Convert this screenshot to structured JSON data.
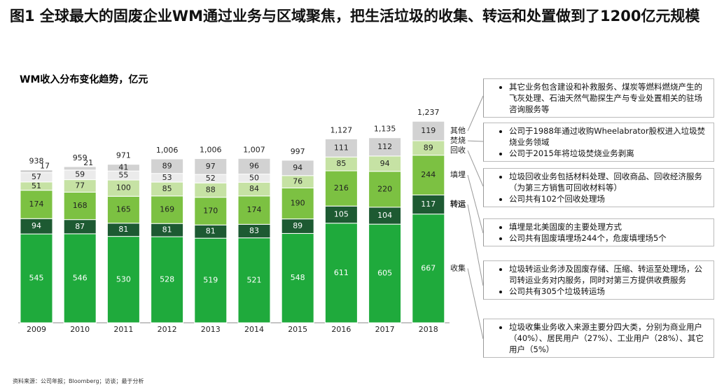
{
  "title": "图1 全球最大的固废企业WM通过业务与区域聚焦，把生活垃圾的收集、转运和处置做到了1200亿元规模",
  "chart_data": {
    "type": "stacked-bar",
    "title": "WM收入分布变化趋势，亿元",
    "categories": [
      "2009",
      "2010",
      "2011",
      "2012",
      "2013",
      "2014",
      "2015",
      "2016",
      "2017",
      "2018"
    ],
    "series": [
      {
        "name": "收集",
        "color": "#1faa3c",
        "values": [
          545,
          546,
          530,
          528,
          519,
          521,
          548,
          611,
          605,
          667
        ]
      },
      {
        "name": "转运",
        "color": "#1d5a32",
        "values": [
          94,
          87,
          81,
          81,
          81,
          83,
          89,
          105,
          104,
          117
        ]
      },
      {
        "name": "填埋",
        "color": "#7cc142",
        "values": [
          174,
          168,
          165,
          169,
          170,
          174,
          190,
          216,
          220,
          244
        ]
      },
      {
        "name": "回收",
        "color": "#c6e2a4",
        "values": [
          51,
          77,
          100,
          85,
          88,
          84,
          76,
          85,
          94,
          89
        ]
      },
      {
        "name": "焚烧",
        "color": "#ebebeb",
        "values": [
          57,
          59,
          55,
          53,
          52,
          50,
          0,
          0,
          0,
          0
        ]
      },
      {
        "name": "其他",
        "color": "#d2d2d2",
        "values": [
          17,
          21,
          41,
          89,
          97,
          96,
          94,
          111,
          112,
          119
        ]
      }
    ],
    "totals": [
      {
        "value": 938,
        "label": "938"
      },
      {
        "value": 959,
        "label": "959"
      },
      {
        "value": 971,
        "label": "971"
      },
      {
        "value": 1006,
        "label": "1,006"
      },
      {
        "value": 1006,
        "label": "1,006"
      },
      {
        "value": 1007,
        "label": "1,007"
      },
      {
        "value": 997,
        "label": "997"
      },
      {
        "value": 1127,
        "label": "1,127"
      },
      {
        "value": 1135,
        "label": "1,135"
      },
      {
        "value": 1237,
        "label": "1,237"
      }
    ]
  },
  "notes": [
    [
      "其它业务包含建设和补救服务、煤炭等燃料燃烧产生的飞灰处理、石油天然气勘探生产与专业处置相关的驻场咨询服务等"
    ],
    [
      "公司于1988年通过收购Wheelabrator股权进入垃圾焚烧业务领域",
      "公司于2015年将垃圾焚烧业务剥离"
    ],
    [
      "垃圾回收业务包括材料处理、回收商品、回收经济服务（为第三方销售可回收材料等）",
      "公司共有102个回收处理场"
    ],
    [
      "填埋是北美固废的主要处理方式",
      "公司共有固废填埋场244个，危废填埋场5个"
    ],
    [
      "垃圾转运业务涉及固废存储、压缩、转运至处理场，公司转运业务对内服务，同时对第三方提供收费服务",
      "公司共有305个垃圾转运场"
    ],
    [
      "垃圾收集业务收入来源主要分四大类，分别为商业用户（40%）、居民用户（27%）、工业用户（28%）、其它用户（5%）"
    ]
  ],
  "source": "资料来源：公司年报；Bloomberg；访谈；最于分析"
}
